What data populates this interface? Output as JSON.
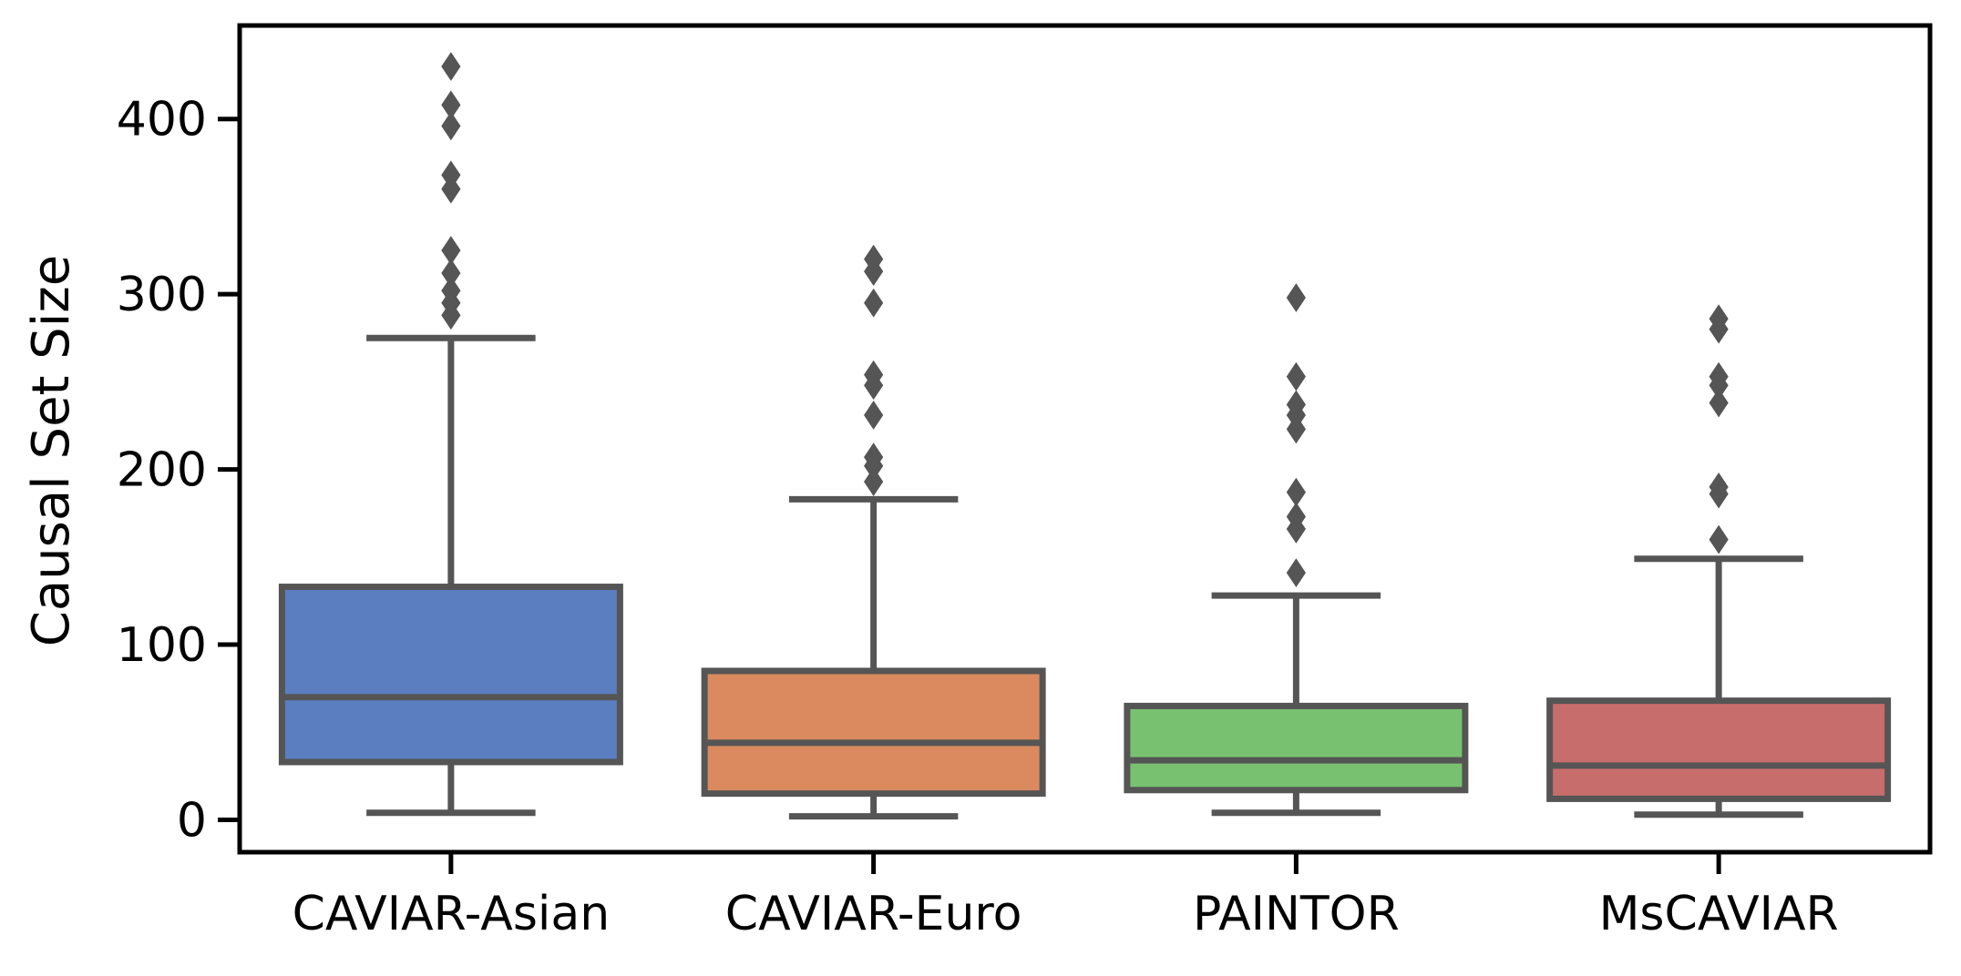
{
  "chart_data": {
    "type": "box",
    "xlabel": "",
    "ylabel": "Causal Set Size",
    "ylim": [
      -19,
      450
    ],
    "yticks": [
      0,
      100,
      200,
      300,
      400
    ],
    "grid": false,
    "line_color": "#555555",
    "categories": [
      "CAVIAR-Asian",
      "CAVIAR-Euro",
      "PAINTOR",
      "MsCAVIAR"
    ],
    "boxes": [
      {
        "category": "CAVIAR-Asian",
        "color": "#5a7ec0",
        "whisker_low": 4,
        "q1": 33,
        "median": 70,
        "q3": 133,
        "whisker_high": 275,
        "outliers": [
          288,
          295,
          302,
          312,
          325,
          360,
          368,
          396,
          408,
          430
        ]
      },
      {
        "category": "CAVIAR-Euro",
        "color": "#da8a5e",
        "whisker_low": 2,
        "q1": 15,
        "median": 44,
        "q3": 85,
        "whisker_high": 183,
        "outliers": [
          193,
          202,
          207,
          231,
          248,
          254,
          295,
          313,
          320
        ]
      },
      {
        "category": "PAINTOR",
        "color": "#78c170",
        "whisker_low": 4,
        "q1": 17,
        "median": 34,
        "q3": 65,
        "whisker_high": 128,
        "outliers": [
          141,
          166,
          173,
          187,
          223,
          231,
          237,
          253,
          298
        ]
      },
      {
        "category": "MsCAVIAR",
        "color": "#c76d6c",
        "whisker_low": 3,
        "q1": 12,
        "median": 31,
        "q3": 68,
        "whisker_high": 149,
        "outliers": [
          160,
          186,
          190,
          238,
          248,
          253,
          280,
          286
        ]
      }
    ]
  }
}
